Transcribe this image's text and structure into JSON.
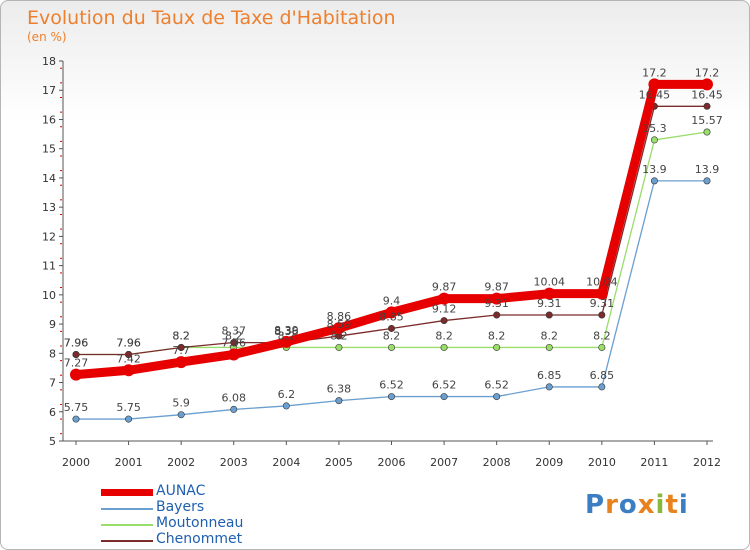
{
  "title": "Evolution du Taux de Taxe d'Habitation",
  "subtitle": "(en %)",
  "logo": [
    "P",
    "r",
    "o",
    "x",
    "i",
    "t",
    "i"
  ],
  "logo_colors": [
    "#3b7ec4",
    "#e8821e",
    "#3b7ec4",
    "#e8821e",
    "#8ab83a",
    "#e8821e",
    "#3b7ec4"
  ],
  "chart_data": {
    "type": "line",
    "title": "Evolution du Taux de Taxe d'Habitation",
    "ylabel": "(en %)",
    "xlabel": "",
    "ylim": [
      5,
      18
    ],
    "yticks": [
      "5",
      "6",
      "7",
      "8",
      "9",
      "10",
      "11",
      "12",
      "13",
      "14",
      "15",
      "16",
      "17",
      "18"
    ],
    "x": [
      "2000",
      "2001",
      "2002",
      "2003",
      "2004",
      "2005",
      "2006",
      "2007",
      "2008",
      "2009",
      "2010",
      "2011",
      "2012"
    ],
    "grid": false,
    "legend": "bottom-left",
    "series": [
      {
        "name": "AUNAC",
        "color": "#e60000",
        "values": [
          7.27,
          7.42,
          7.7,
          7.96,
          8.39,
          8.86,
          9.4,
          9.87,
          9.87,
          10.04,
          10.04,
          17.2,
          17.2
        ],
        "labels": [
          "7.27",
          "7.42",
          "7.7",
          "7.96",
          "8.39",
          "8.86",
          "9.4",
          "9.87",
          "9.87",
          "10.04",
          "10.04",
          "17.2",
          "17.2"
        ]
      },
      {
        "name": "Bayers",
        "color": "#6a9fcf",
        "values": [
          5.75,
          5.75,
          5.9,
          6.08,
          6.2,
          6.38,
          6.52,
          6.52,
          6.52,
          6.85,
          6.85,
          13.9,
          13.9
        ],
        "labels": [
          "5.75",
          "5.75",
          "5.9",
          "6.08",
          "6.2",
          "6.38",
          "6.52",
          "6.52",
          "6.52",
          "6.85",
          "6.85",
          "13.9",
          "13.9"
        ]
      },
      {
        "name": "Moutonneau",
        "color": "#99dd6a",
        "values": [
          7.96,
          7.96,
          8.2,
          8.2,
          8.2,
          8.2,
          8.2,
          8.2,
          8.2,
          8.2,
          8.2,
          15.3,
          15.57
        ],
        "labels": [
          "7.96",
          "7.96",
          "8.2",
          "8.2",
          "8.2",
          "8.2",
          "8.2",
          "8.2",
          "8.2",
          "8.2",
          "8.2",
          "15.3",
          "15.57"
        ]
      },
      {
        "name": "Chenommet",
        "color": "#7b2b2b",
        "values": [
          7.96,
          7.96,
          8.2,
          8.37,
          8.36,
          8.59,
          8.85,
          9.12,
          9.31,
          9.31,
          9.31,
          16.45,
          16.45
        ],
        "labels": [
          "7.96",
          "7.96",
          "8.2",
          "8.37",
          "8.36",
          "8.59",
          "8.85",
          "9.12",
          "9.31",
          "9.31",
          "9.31",
          "16.45",
          "16.45"
        ]
      }
    ]
  }
}
